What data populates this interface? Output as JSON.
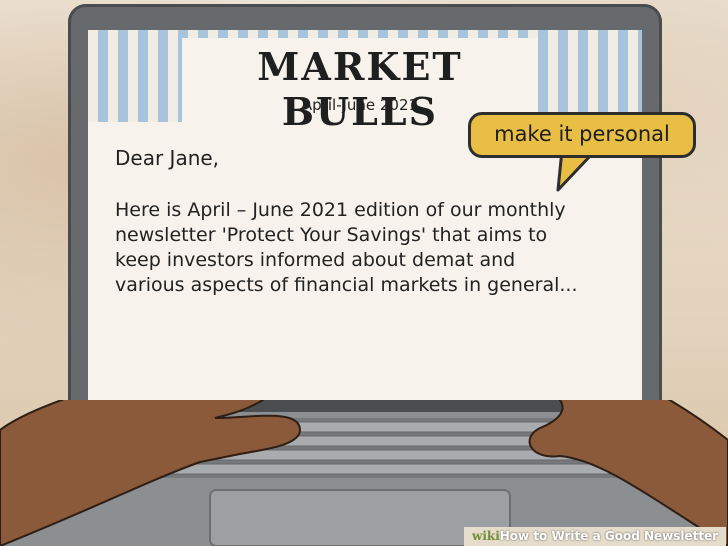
{
  "newsletter": {
    "title": "MARKET BULLS",
    "edition": "April-June 2021",
    "greeting": "Dear Jane,",
    "body_lines": [
      "Here is April – June 2021 edition of our monthly",
      "newsletter 'Protect Your Savings' that aims to",
      "keep investors informed about demat and",
      "various aspects of financial markets in general..."
    ]
  },
  "callout": {
    "text": "make it personal",
    "color": "#e8be44"
  },
  "watermark": {
    "brand": "wiki",
    "title": "How to Write a Good Newsletter"
  }
}
